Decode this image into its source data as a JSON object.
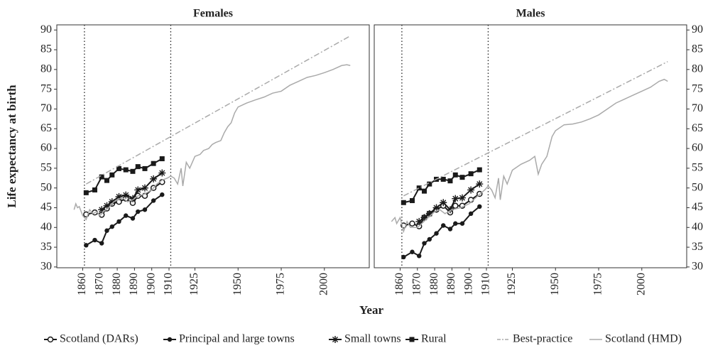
{
  "chart_data": [
    {
      "type": "line",
      "title": "Females",
      "ylabel": "Life expectancy at birth",
      "xlabel": "Year",
      "xlim": [
        1845,
        2026
      ],
      "ylim": [
        29.8,
        91.3
      ],
      "xticks": [
        1860,
        1870,
        1880,
        1890,
        1900,
        1910,
        1925,
        1950,
        1975,
        2000
      ],
      "yticks": [
        30,
        35,
        40,
        45,
        50,
        55,
        60,
        65,
        70,
        75,
        80,
        85,
        90
      ],
      "vlines": [
        1861,
        1911
      ],
      "ytick_side": "left",
      "series": [
        {
          "name": "Scotland (DARs)",
          "color": "#1a1a1a",
          "marker": "open-circle",
          "x": [
            1862,
            1867,
            1871,
            1874,
            1877,
            1881,
            1885,
            1889,
            1892,
            1896,
            1901,
            1906
          ],
          "values": [
            43.3,
            43.8,
            43.2,
            44.8,
            46,
            46.5,
            47.3,
            46.2,
            48,
            48,
            50,
            51.5
          ]
        },
        {
          "name": "Principal and large towns",
          "color": "#1a1a1a",
          "marker": "circle",
          "x": [
            1862,
            1867,
            1871,
            1874,
            1877,
            1881,
            1885,
            1889,
            1892,
            1896,
            1901,
            1906
          ],
          "values": [
            35.5,
            36.8,
            36,
            39.2,
            40.2,
            41.5,
            43,
            42.3,
            44,
            44.5,
            46.8,
            48.3
          ]
        },
        {
          "name": "Small towns",
          "color": "#1a1a1a",
          "marker": "star",
          "x": [
            1871,
            1874,
            1877,
            1881,
            1885,
            1889,
            1892,
            1896,
            1901,
            1906
          ],
          "values": [
            44.5,
            45.5,
            46.5,
            47.8,
            48.2,
            47.3,
            49.5,
            50,
            52.3,
            53.8
          ]
        },
        {
          "name": "Rural",
          "color": "#1a1a1a",
          "marker": "square",
          "x": [
            1862,
            1867,
            1871,
            1874,
            1877,
            1881,
            1885,
            1889,
            1892,
            1896,
            1901,
            1906
          ],
          "values": [
            48.8,
            49.5,
            52.8,
            51.9,
            53.3,
            54.9,
            54.6,
            54.2,
            55.4,
            54.9,
            56.2,
            57.4
          ]
        },
        {
          "name": "Best-practice",
          "color": "#aaaaaa",
          "dash": "dashdot",
          "x": [
            1862,
            2015
          ],
          "values": [
            51,
            88.5
          ]
        },
        {
          "name": "Scotland (HMD)",
          "color": "#aaaaaa",
          "x": [
            1855,
            1856,
            1857,
            1858,
            1860,
            1862,
            1864,
            1866,
            1868,
            1870,
            1872,
            1875,
            1878,
            1880,
            1883,
            1886,
            1889,
            1892,
            1895,
            1898,
            1900,
            1903,
            1906,
            1909,
            1911,
            1913,
            1915,
            1917,
            1918,
            1920,
            1922,
            1925,
            1928,
            1930,
            1933,
            1935,
            1937,
            1940,
            1942,
            1944,
            1946,
            1948,
            1950,
            1955,
            1960,
            1965,
            1970,
            1975,
            1980,
            1985,
            1990,
            1995,
            2000,
            2005,
            2010,
            2013,
            2015
          ],
          "values": [
            44.5,
            46,
            45,
            45.3,
            43,
            42,
            44.5,
            43.5,
            44,
            43,
            44,
            45,
            46.5,
            47,
            47.5,
            46.5,
            47,
            48,
            48.3,
            49,
            49.5,
            51,
            52,
            52.5,
            53,
            52.5,
            51,
            55,
            50.5,
            56.5,
            55,
            58,
            58.5,
            59.5,
            60,
            61,
            61.5,
            62,
            64,
            65.5,
            66.5,
            69,
            70.5,
            71.5,
            72.3,
            73,
            74,
            74.5,
            76,
            77,
            78,
            78.5,
            79.2,
            80,
            81,
            81.2,
            81
          ]
        }
      ]
    },
    {
      "type": "line",
      "title": "Males",
      "xlim": [
        1845,
        2026
      ],
      "ylim": [
        29.8,
        91.3
      ],
      "xticks": [
        1860,
        1870,
        1880,
        1890,
        1900,
        1910,
        1925,
        1950,
        1975,
        2000
      ],
      "yticks": [
        30,
        35,
        40,
        45,
        50,
        55,
        60,
        65,
        70,
        75,
        80,
        85,
        90
      ],
      "vlines": [
        1861,
        1911
      ],
      "ytick_side": "right",
      "series": [
        {
          "color": "#1a1a1a",
          "marker": "open-circle",
          "x": [
            1862,
            1867,
            1871,
            1874,
            1877,
            1881,
            1885,
            1889,
            1892,
            1896,
            1901,
            1906
          ],
          "values": [
            40.5,
            41,
            40.3,
            42.5,
            43.5,
            44.5,
            45.5,
            43.8,
            45.5,
            45.5,
            47,
            48.5
          ]
        },
        {
          "color": "#1a1a1a",
          "marker": "circle",
          "x": [
            1862,
            1867,
            1871,
            1874,
            1877,
            1881,
            1885,
            1889,
            1892,
            1896,
            1901,
            1906
          ],
          "values": [
            32.5,
            33.8,
            32.8,
            36,
            37,
            38.5,
            40.5,
            39.6,
            41,
            41,
            43.5,
            45.3
          ]
        },
        {
          "color": "#1a1a1a",
          "marker": "star",
          "x": [
            1871,
            1874,
            1877,
            1881,
            1885,
            1889,
            1892,
            1896,
            1901,
            1906
          ],
          "values": [
            41.5,
            42.5,
            43.5,
            45,
            46.3,
            44.5,
            47.3,
            47.5,
            49.5,
            51
          ]
        },
        {
          "color": "#1a1a1a",
          "marker": "square",
          "x": [
            1862,
            1867,
            1871,
            1874,
            1877,
            1881,
            1885,
            1889,
            1892,
            1896,
            1901,
            1906
          ],
          "values": [
            46.3,
            46.8,
            50,
            49.2,
            51,
            52.2,
            52.2,
            51.8,
            53.3,
            52.7,
            53.6,
            54.6
          ]
        },
        {
          "color": "#aaaaaa",
          "dash": "dashdot",
          "x": [
            1862,
            2015
          ],
          "values": [
            48,
            82
          ]
        },
        {
          "color": "#aaaaaa",
          "x": [
            1855,
            1857,
            1858,
            1860,
            1862,
            1864,
            1866,
            1870,
            1875,
            1880,
            1883,
            1886,
            1890,
            1895,
            1900,
            1905,
            1909,
            1911,
            1913,
            1915,
            1917,
            1918,
            1920,
            1922,
            1925,
            1930,
            1935,
            1938,
            1940,
            1942,
            1945,
            1948,
            1950,
            1955,
            1960,
            1965,
            1970,
            1975,
            1980,
            1985,
            1990,
            1995,
            2000,
            2005,
            2010,
            2013,
            2015
          ],
          "values": [
            41.5,
            42.5,
            41,
            42.5,
            39,
            41.5,
            40,
            40,
            42,
            44,
            44.5,
            43.5,
            44.5,
            45,
            46,
            48,
            49.5,
            50.5,
            49.5,
            47.5,
            52.5,
            47,
            53,
            51,
            54.5,
            56,
            57,
            58,
            53.5,
            56,
            58,
            63,
            64.5,
            66,
            66.2,
            66.7,
            67.5,
            68.5,
            70,
            71.5,
            72.5,
            73.5,
            74.5,
            75.5,
            77,
            77.5,
            77
          ]
        }
      ]
    }
  ]
}
